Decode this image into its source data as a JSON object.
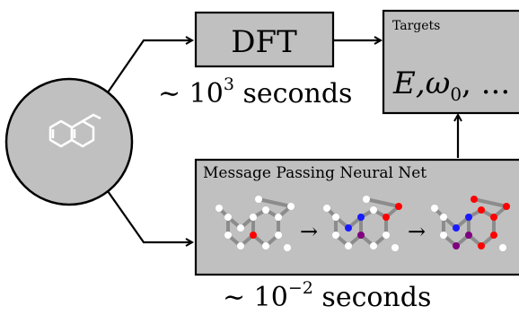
{
  "diagram": {
    "dft_label": "DFT",
    "dft_time": "∼ 10",
    "dft_time_exp": "3",
    "dft_time_unit": "seconds",
    "targets_title": "Targets",
    "targets_values": "E,ω",
    "targets_values_sub": "0",
    "targets_values_tail": ", ...",
    "mpnn_title": "Message Passing Neural Net",
    "mpnn_time": "∼ 10",
    "mpnn_time_exp": "−2",
    "mpnn_time_unit": "seconds",
    "step_arrow": "→"
  },
  "colors": {
    "box_fill": "#c0c0c0",
    "node_white": "#ffffff",
    "node_blue": "#1a1aff",
    "node_red": "#ff0000",
    "node_purple": "#800080",
    "bond_gray": "#8c8c8c",
    "molecule_line": "#ffffff",
    "circle_fill": "#c0c0c0"
  },
  "icons": [
    "molecule-icon",
    "arrow-right-icon",
    "arrow-up-icon"
  ]
}
